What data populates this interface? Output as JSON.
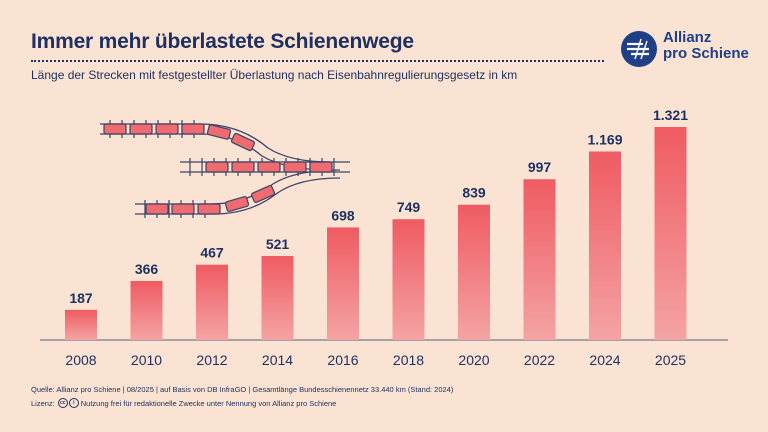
{
  "header": {
    "title": "Immer mehr überlastete Schienenwege",
    "subtitle": "Länge der Strecken mit festgestellter Überlastung nach Eisenbahnregulierungsgesetz in km"
  },
  "logo": {
    "line1": "Allianz",
    "line2": "pro Schiene"
  },
  "chart_data": {
    "type": "bar",
    "title": "Immer mehr überlastete Schienenwege",
    "ylabel": "km",
    "xlabel": "",
    "categories": [
      "2008",
      "2010",
      "2012",
      "2014",
      "2016",
      "2018",
      "2020",
      "2022",
      "2024",
      "2025"
    ],
    "values": [
      187,
      366,
      467,
      521,
      698,
      749,
      839,
      997,
      1169,
      1321
    ],
    "labels": [
      "187",
      "366",
      "467",
      "521",
      "698",
      "749",
      "839",
      "997",
      "1.169",
      "1.321"
    ],
    "ylim": [
      0,
      1321
    ],
    "grid": false
  },
  "footer": {
    "source": "Quelle: Allianz pro Schiene | 08/2025 | auf Basis von DB InfraGO | Gesamtlänge Bundesschienennetz 33.440 km (Stand: 2024)",
    "license_label": "Lizenz:",
    "license_text": "Nutzung frei für redaktionelle Zwecke unter Nennung von Allianz pro Schiene",
    "cc_icon": "cc-icon",
    "by_icon": "by-icon"
  },
  "colors": {
    "background": "#fbe3d3",
    "bar_top": "#ef5b62",
    "bar_bottom": "#f4a3a4",
    "text": "#1f3160",
    "brand": "#1f3f86"
  }
}
